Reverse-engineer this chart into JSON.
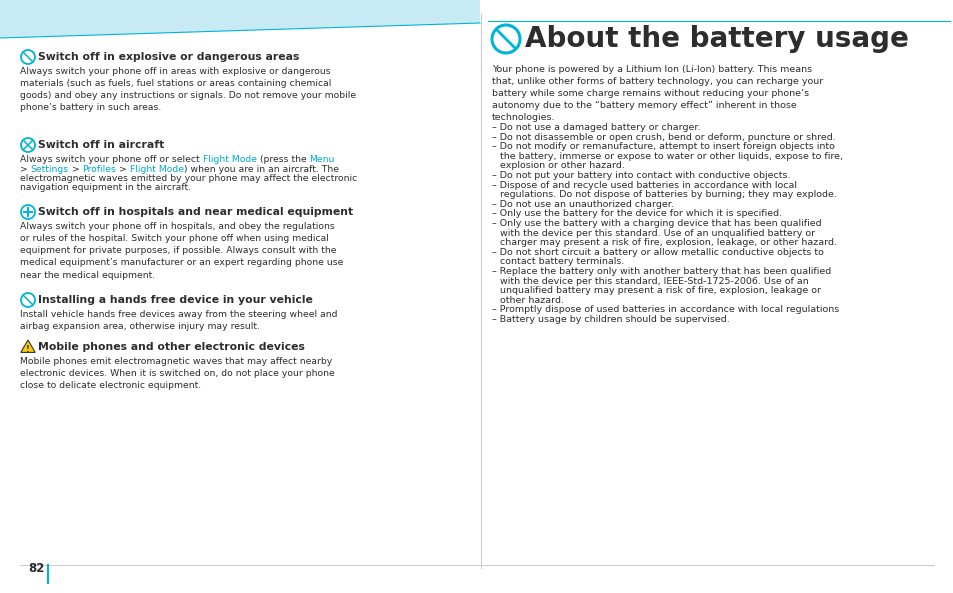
{
  "bg_color": "#ffffff",
  "band_color": "#c8eaf5",
  "cyan_color": "#00b4d8",
  "text_color": "#2d2d2d",
  "link_color": "#00aacc",
  "page_num": "82",
  "title": "About the battery usage",
  "sec1_head": "Switch off in explosive or dangerous areas",
  "sec1_body": "Always switch your phone off in areas with explosive or dangerous\nmaterials (such as fuels, fuel stations or areas containing chemical\ngoods) and obey any instructions or signals. Do not remove your mobile\nphone’s battery in such areas.",
  "sec2_head": "Switch off in aircraft",
  "sec2_line1_plain": "Always switch your phone off or select ",
  "sec2_link1": "Flight Mode",
  "sec2_line1_plain2": " (press the ",
  "sec2_link2": "Menu",
  "sec2_line2_plain1": "> ",
  "sec2_link3": "Settings",
  "sec2_line2_plain2": " > ",
  "sec2_link4": "Profiles",
  "sec2_line2_plain3": " > ",
  "sec2_link5": "Flight Mode",
  "sec2_line2_plain4": ") when you are in an aircraft. The",
  "sec2_line3": "electromagnetic waves emitted by your phone may affect the electronic",
  "sec2_line4": "navigation equipment in the aircraft.",
  "sec3_head": "Switch off in hospitals and near medical equipment",
  "sec3_body": "Always switch your phone off in hospitals, and obey the regulations\nor rules of the hospital. Switch your phone off when using medical\nequipment for private purposes, if possible. Always consult with the\nmedical equipment’s manufacturer or an expert regarding phone use\nnear the medical equipment.",
  "sec4_head": "Installing a hands free device in your vehicle",
  "sec4_body": "Install vehicle hands free devices away from the steering wheel and\nairbag expansion area, otherwise injury may result.",
  "sec5_head": "Mobile phones and other electronic devices",
  "sec5_body": "Mobile phones emit electromagnetic waves that may affect nearby\nelectronic devices. When it is switched on, do not place your phone\nclose to delicate electronic equipment.",
  "right_intro": "Your phone is powered by a Lithium Ion (Li-Ion) battery. This means\nthat, unlike other forms of battery technology, you can recharge your\nbattery while some charge remains without reducing your phone’s\nautonomy due to the “battery memory effect” inherent in those\ntechnologies.",
  "bullets": [
    "Do not use a damaged battery or charger.",
    "Do not disassemble or open crush, bend or deform, puncture or shred.",
    "Do not modify or remanufacture, attempt to insert foreign objects into\n   the battery, immerse or expose to water or other liquids, expose to fire,\n   explosion or other hazard.",
    "Do not put your battery into contact with conductive objects.",
    "Dispose of and recycle used batteries in accordance with local\n   regulations. Do not dispose of batteries by burning; they may explode.",
    "Do not use an unauthorized charger.",
    "Only use the battery for the device for which it is specified.",
    "Only use the battery with a charging device that has been qualified\n   with the device per this standard. Use of an unqualified battery or\n   charger may present a risk of fire, explosion, leakage, or other hazard.",
    "Do not short circuit a battery or allow metallic conductive objects to\n   contact battery terminals.",
    "Replace the battery only with another battery that has been qualified\n   with the device per this standard, IEEE-Std-1725-2006. Use of an\n   unqualified battery may present a risk of fire, explosion, leakage or\n   other hazard.",
    "Promptly dispose of used batteries in accordance with local regulations",
    "Battery usage by children should be supervised."
  ]
}
